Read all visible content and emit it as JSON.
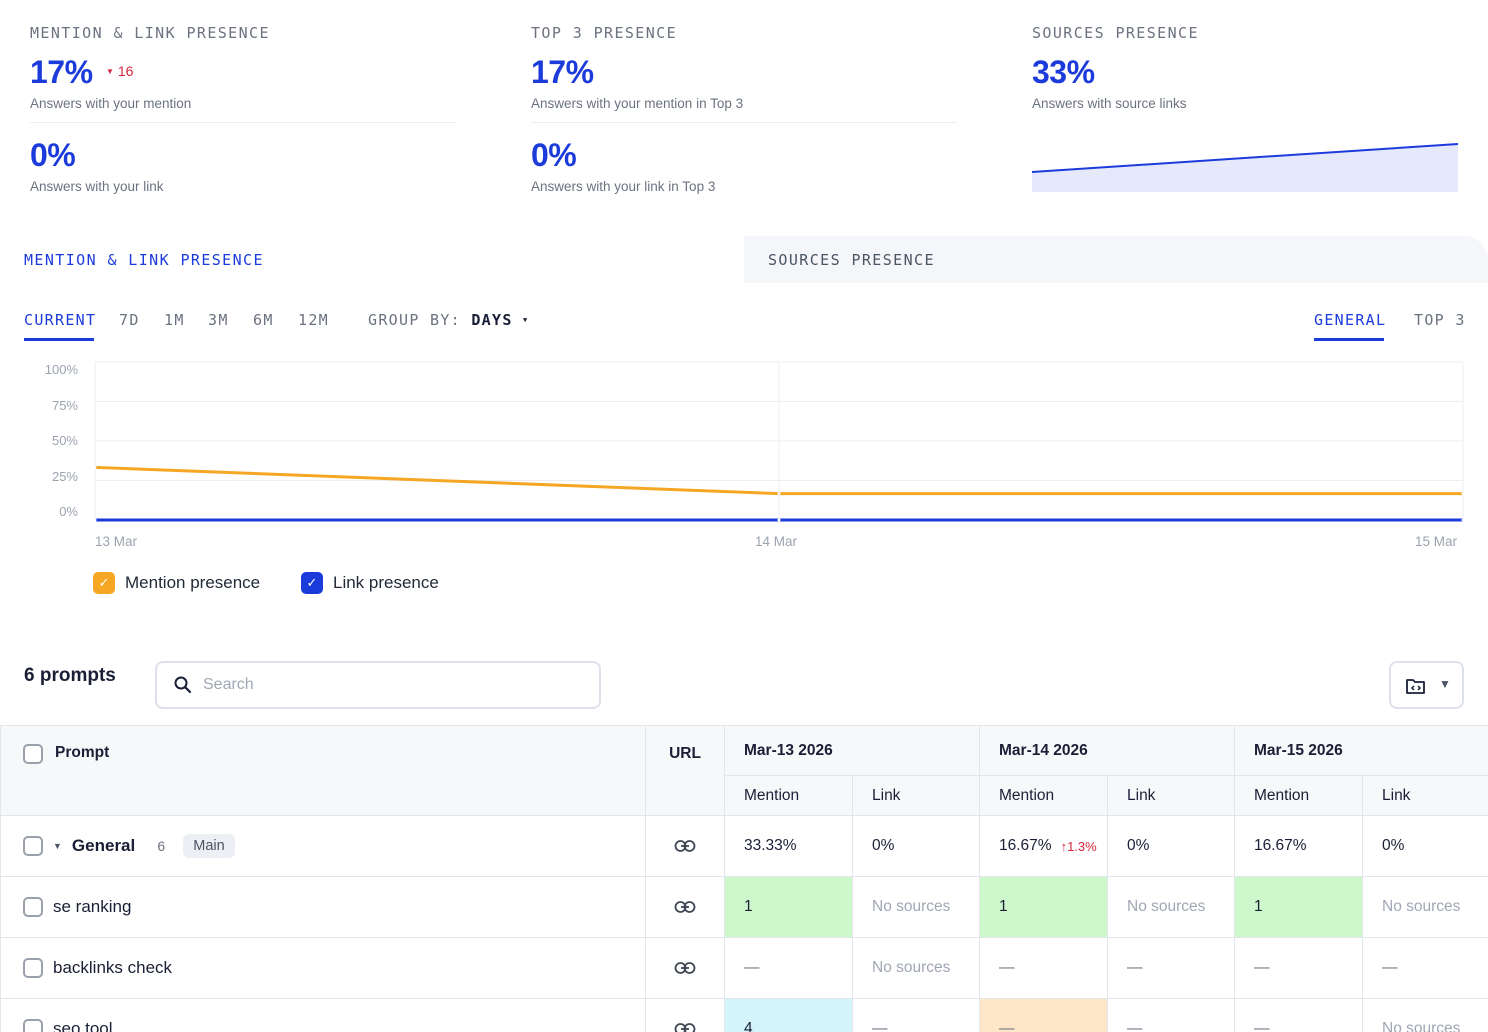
{
  "kpis": [
    {
      "label": "MENTION & LINK PRESENCE",
      "primary_value": "17%",
      "primary_delta": "16",
      "primary_caption": "Answers with your mention",
      "secondary_value": "0%",
      "secondary_caption": "Answers with your link"
    },
    {
      "label": "TOP 3 PRESENCE",
      "primary_value": "17%",
      "primary_caption": "Answers with your mention in Top 3",
      "secondary_value": "0%",
      "secondary_caption": "Answers with your link in Top 3"
    },
    {
      "label": "SOURCES PRESENCE",
      "primary_value": "33%",
      "primary_caption": "Answers with source links",
      "sparkline_trend": "rising"
    }
  ],
  "section_tabs": {
    "active": "MENTION & LINK PRESENCE",
    "inactive": "SOURCES PRESENCE"
  },
  "filters": {
    "ranges": [
      "CURRENT",
      "7D",
      "1M",
      "3M",
      "6M",
      "12M"
    ],
    "active_range": "CURRENT",
    "group_by_label": "GROUP BY:",
    "group_by_value": "DAYS",
    "views": [
      "GENERAL",
      "TOP 3"
    ],
    "active_view": "GENERAL"
  },
  "chart_data": {
    "type": "line",
    "x": [
      "13 Mar",
      "14 Mar",
      "15 Mar"
    ],
    "y_ticks": [
      "100%",
      "75%",
      "50%",
      "25%",
      "0%"
    ],
    "ylim": [
      0,
      100
    ],
    "grid": true,
    "legend_position": "bottom-left",
    "series": [
      {
        "name": "Mention presence",
        "values": [
          33.33,
          16.67,
          16.67
        ],
        "color": "#f5a623"
      },
      {
        "name": "Link presence",
        "values": [
          0,
          0,
          0
        ],
        "color": "#1c3bdb"
      }
    ]
  },
  "prompts": {
    "title": "6 prompts",
    "search_placeholder": "Search"
  },
  "table": {
    "headers": {
      "prompt": "Prompt",
      "url": "URL",
      "dates": [
        "Mar-13 2026",
        "Mar-14 2026",
        "Mar-15 2026"
      ],
      "mention": "Mention",
      "link": "Link"
    },
    "group_row": {
      "name": "General",
      "count": "6",
      "tag": "Main",
      "cells": [
        "33.33%",
        "0%",
        "16.67%",
        "0%",
        "16.67%",
        "0%"
      ],
      "delta": "↑1.3%"
    },
    "rows": [
      {
        "name": "se ranking",
        "cells": [
          "1",
          "No sources",
          "1",
          "No sources",
          "1",
          "No sources"
        ]
      },
      {
        "name": "backlinks check",
        "cells": [
          "—",
          "No sources",
          "—",
          "—",
          "—",
          "—"
        ]
      },
      {
        "name": "seo tool",
        "cells": [
          "4",
          "—",
          "—",
          "—",
          "—",
          "No sources"
        ]
      }
    ]
  },
  "colors": {
    "accent": "#1c3bdb",
    "mention_line": "#f5a623",
    "negative": "#d6243b"
  }
}
